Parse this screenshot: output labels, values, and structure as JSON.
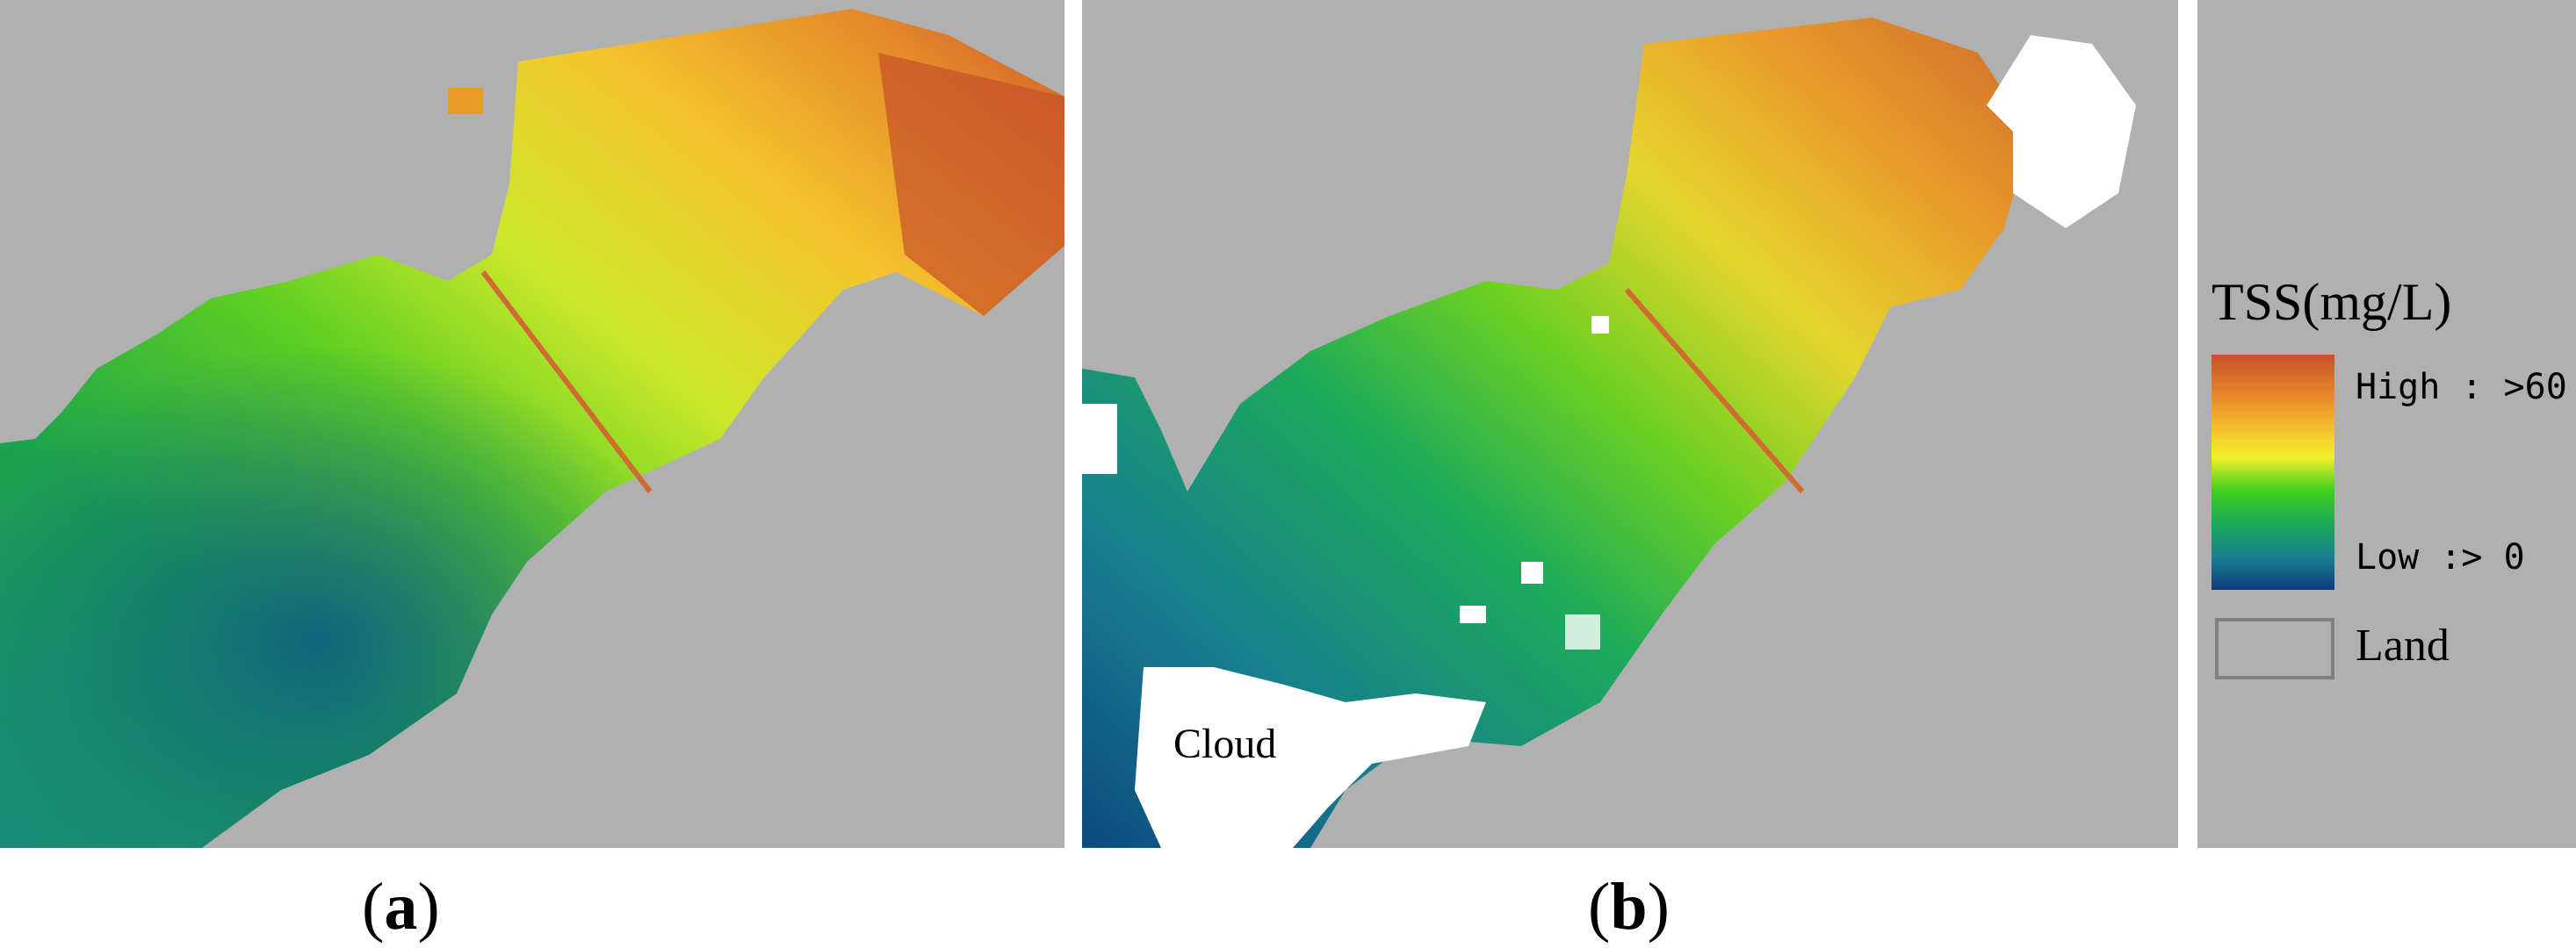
{
  "panels": [
    {
      "id": "a",
      "label_text": "a"
    },
    {
      "id": "b",
      "label_text": "b"
    }
  ],
  "annotations": {
    "cloud": "Cloud"
  },
  "legend": {
    "title": "TSS(mg/L)",
    "high_label": "High : >60",
    "low_label": "Low :> 0",
    "land_label": "Land",
    "colors": {
      "high": "#c8502a",
      "mid_high": "#f7d22c",
      "mid": "#3fcf1c",
      "low": "#0d3d80",
      "land": "#b0b0b0",
      "cloud": "#ffffff"
    }
  }
}
